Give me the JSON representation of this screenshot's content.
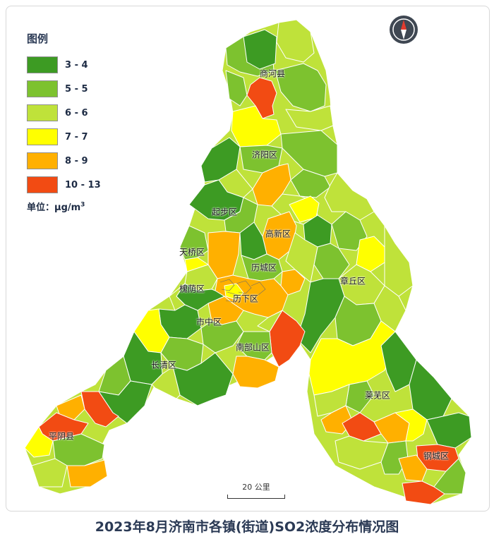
{
  "title": "2023年8月济南市各镇(街道)SO2浓度分布情况图",
  "legend": {
    "title": "图例",
    "items": [
      {
        "label": "3 - 4",
        "color": "#3d9b23"
      },
      {
        "label": "5 - 5",
        "color": "#7dc22f"
      },
      {
        "label": "6 - 6",
        "color": "#bfe23a"
      },
      {
        "label": "7 - 7",
        "color": "#ffff00"
      },
      {
        "label": "8 - 9",
        "color": "#ffb000"
      },
      {
        "label": "10 - 13",
        "color": "#f24b13"
      }
    ],
    "unit_prefix": "单位：μg/m",
    "unit_exp": "3"
  },
  "scale_label": "20 公里",
  "districts": [
    {
      "name": "商河县",
      "key": "shanghe"
    },
    {
      "name": "济阳区",
      "key": "jiyang"
    },
    {
      "name": "起步区",
      "key": "qibu"
    },
    {
      "name": "高新区",
      "key": "gaoxin"
    },
    {
      "name": "天桥区",
      "key": "tianqiao"
    },
    {
      "name": "历城区",
      "key": "licheng"
    },
    {
      "name": "章丘区",
      "key": "zhangqiu"
    },
    {
      "name": "槐荫区",
      "key": "huaiyin"
    },
    {
      "name": "历下区",
      "key": "lixia"
    },
    {
      "name": "市中区",
      "key": "shizhong"
    },
    {
      "name": "南部山区",
      "key": "nanbushan"
    },
    {
      "name": "长清区",
      "key": "changqing"
    },
    {
      "name": "莱芜区",
      "key": "laiwu"
    },
    {
      "name": "平阴县",
      "key": "pingyin"
    },
    {
      "name": "钢城区",
      "key": "gangcheng"
    }
  ]
}
